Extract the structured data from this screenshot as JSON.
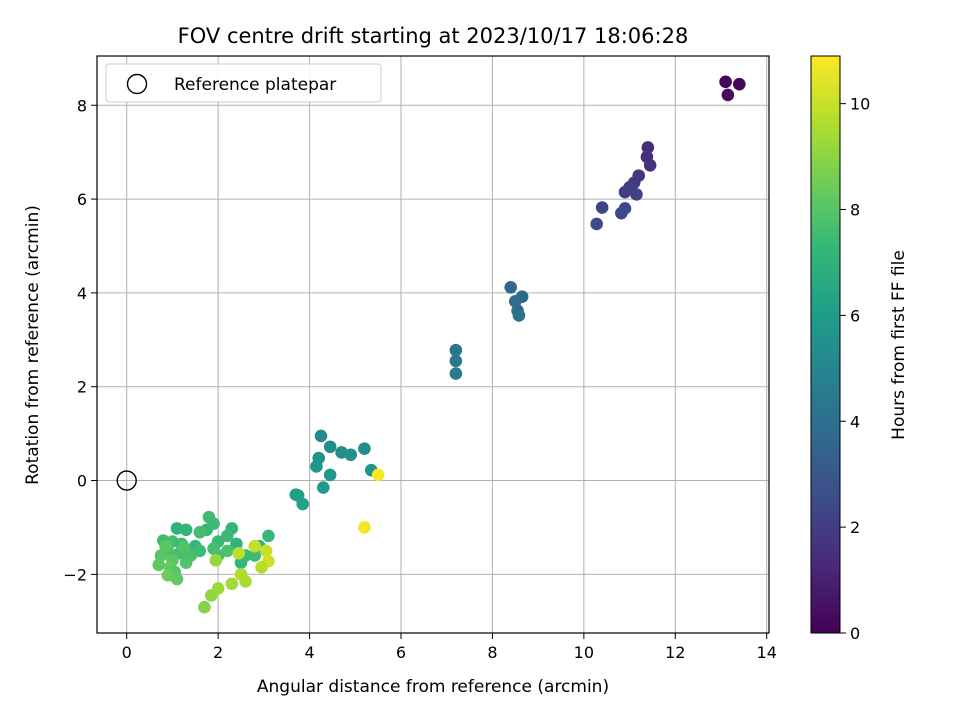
{
  "chart_data": {
    "type": "scatter",
    "title": "FOV centre drift starting at 2023/10/17 18:06:28",
    "xlabel": "Angular distance from reference (arcmin)",
    "ylabel": "Rotation from reference (arcmin)",
    "xlim": [
      -0.65,
      14.05
    ],
    "ylim": [
      -3.25,
      9.05
    ],
    "xticks": [
      0,
      2,
      4,
      6,
      8,
      10,
      12,
      14
    ],
    "yticks": [
      -2,
      0,
      2,
      4,
      6,
      8
    ],
    "grid": true,
    "legend": {
      "placement": "upper-left",
      "entries": [
        {
          "label": "Reference platepar",
          "marker": "open-circle"
        }
      ]
    },
    "reference_point": {
      "x": 0,
      "y": 0
    },
    "colorbar": {
      "label": "Hours from first FF file",
      "min": 0,
      "max": 10.9,
      "ticks": [
        0,
        2,
        4,
        6,
        8,
        10
      ],
      "colormap": "viridis"
    },
    "points": [
      {
        "x": 13.1,
        "y": 8.5,
        "c": 0.1
      },
      {
        "x": 13.4,
        "y": 8.45,
        "c": 0.2
      },
      {
        "x": 13.15,
        "y": 8.22,
        "c": 0.3
      },
      {
        "x": 11.4,
        "y": 7.1,
        "c": 1.4
      },
      {
        "x": 11.38,
        "y": 6.9,
        "c": 1.5
      },
      {
        "x": 11.45,
        "y": 6.72,
        "c": 1.6
      },
      {
        "x": 11.2,
        "y": 6.5,
        "c": 1.7
      },
      {
        "x": 11.1,
        "y": 6.35,
        "c": 1.8
      },
      {
        "x": 11.0,
        "y": 6.25,
        "c": 1.9
      },
      {
        "x": 10.9,
        "y": 6.15,
        "c": 2.0
      },
      {
        "x": 11.15,
        "y": 6.1,
        "c": 2.1
      },
      {
        "x": 10.4,
        "y": 5.82,
        "c": 2.2
      },
      {
        "x": 10.9,
        "y": 5.8,
        "c": 2.3
      },
      {
        "x": 10.82,
        "y": 5.7,
        "c": 2.4
      },
      {
        "x": 10.28,
        "y": 5.47,
        "c": 2.5
      },
      {
        "x": 8.4,
        "y": 4.12,
        "c": 3.6
      },
      {
        "x": 8.65,
        "y": 3.92,
        "c": 3.7
      },
      {
        "x": 8.5,
        "y": 3.82,
        "c": 3.8
      },
      {
        "x": 8.55,
        "y": 3.62,
        "c": 3.9
      },
      {
        "x": 8.58,
        "y": 3.52,
        "c": 4.0
      },
      {
        "x": 7.2,
        "y": 2.78,
        "c": 4.3
      },
      {
        "x": 7.2,
        "y": 2.55,
        "c": 4.4
      },
      {
        "x": 7.2,
        "y": 2.28,
        "c": 4.5
      },
      {
        "x": 4.25,
        "y": 0.95,
        "c": 5.2
      },
      {
        "x": 4.45,
        "y": 0.72,
        "c": 5.3
      },
      {
        "x": 4.7,
        "y": 0.6,
        "c": 5.4
      },
      {
        "x": 4.9,
        "y": 0.55,
        "c": 5.5
      },
      {
        "x": 5.2,
        "y": 0.68,
        "c": 5.3
      },
      {
        "x": 4.2,
        "y": 0.48,
        "c": 5.6
      },
      {
        "x": 4.15,
        "y": 0.3,
        "c": 5.7
      },
      {
        "x": 4.45,
        "y": 0.12,
        "c": 5.8
      },
      {
        "x": 5.35,
        "y": 0.22,
        "c": 5.6
      },
      {
        "x": 4.3,
        "y": -0.15,
        "c": 5.9
      },
      {
        "x": 3.7,
        "y": -0.3,
        "c": 6.0
      },
      {
        "x": 3.75,
        "y": -0.32,
        "c": 6.1
      },
      {
        "x": 3.85,
        "y": -0.5,
        "c": 6.2
      },
      {
        "x": 5.5,
        "y": 0.12,
        "c": 10.9
      },
      {
        "x": 5.2,
        "y": -1.0,
        "c": 10.8
      },
      {
        "x": 1.1,
        "y": -1.02,
        "c": 7.0
      },
      {
        "x": 1.3,
        "y": -1.05,
        "c": 7.1
      },
      {
        "x": 1.8,
        "y": -0.78,
        "c": 7.5
      },
      {
        "x": 1.9,
        "y": -0.92,
        "c": 7.4
      },
      {
        "x": 1.75,
        "y": -1.05,
        "c": 7.3
      },
      {
        "x": 1.6,
        "y": -1.1,
        "c": 7.6
      },
      {
        "x": 2.3,
        "y": -1.02,
        "c": 7.2
      },
      {
        "x": 2.2,
        "y": -1.18,
        "c": 7.4
      },
      {
        "x": 3.1,
        "y": -1.18,
        "c": 7.3
      },
      {
        "x": 0.8,
        "y": -1.28,
        "c": 7.5
      },
      {
        "x": 1.0,
        "y": -1.3,
        "c": 7.6
      },
      {
        "x": 1.2,
        "y": -1.35,
        "c": 7.4
      },
      {
        "x": 1.5,
        "y": -1.4,
        "c": 7.2
      },
      {
        "x": 2.0,
        "y": -1.3,
        "c": 7.3
      },
      {
        "x": 2.4,
        "y": -1.35,
        "c": 7.1
      },
      {
        "x": 2.9,
        "y": -1.4,
        "c": 7.0
      },
      {
        "x": 0.9,
        "y": -1.5,
        "c": 7.8
      },
      {
        "x": 1.15,
        "y": -1.55,
        "c": 7.6
      },
      {
        "x": 1.4,
        "y": -1.6,
        "c": 7.7
      },
      {
        "x": 1.6,
        "y": -1.5,
        "c": 7.5
      },
      {
        "x": 1.9,
        "y": -1.45,
        "c": 7.6
      },
      {
        "x": 2.2,
        "y": -1.5,
        "c": 7.8
      },
      {
        "x": 2.6,
        "y": -1.6,
        "c": 7.4
      },
      {
        "x": 2.5,
        "y": -1.75,
        "c": 7.2
      },
      {
        "x": 0.75,
        "y": -1.6,
        "c": 8.0
      },
      {
        "x": 1.0,
        "y": -1.7,
        "c": 8.1
      },
      {
        "x": 1.3,
        "y": -1.75,
        "c": 7.9
      },
      {
        "x": 0.7,
        "y": -1.8,
        "c": 8.2
      },
      {
        "x": 0.95,
        "y": -1.85,
        "c": 8.3
      },
      {
        "x": 1.05,
        "y": -1.95,
        "c": 8.0
      },
      {
        "x": 0.9,
        "y": -2.02,
        "c": 8.4
      },
      {
        "x": 1.1,
        "y": -2.1,
        "c": 8.2
      },
      {
        "x": 2.0,
        "y": -1.6,
        "c": 7.7
      },
      {
        "x": 2.8,
        "y": -1.6,
        "c": 7.5
      },
      {
        "x": 1.25,
        "y": -1.42,
        "c": 7.9
      },
      {
        "x": 0.85,
        "y": -1.4,
        "c": 8.1
      },
      {
        "x": 1.7,
        "y": -2.7,
        "c": 8.9
      },
      {
        "x": 1.85,
        "y": -2.45,
        "c": 9.1
      },
      {
        "x": 2.0,
        "y": -2.3,
        "c": 9.3
      },
      {
        "x": 2.3,
        "y": -2.2,
        "c": 9.4
      },
      {
        "x": 2.6,
        "y": -2.15,
        "c": 9.5
      },
      {
        "x": 2.5,
        "y": -2.0,
        "c": 9.6
      },
      {
        "x": 2.45,
        "y": -1.55,
        "c": 9.8
      },
      {
        "x": 1.95,
        "y": -1.7,
        "c": 9.2
      },
      {
        "x": 2.8,
        "y": -1.4,
        "c": 9.9
      },
      {
        "x": 3.05,
        "y": -1.5,
        "c": 10.0
      },
      {
        "x": 3.1,
        "y": -1.72,
        "c": 10.1
      },
      {
        "x": 2.95,
        "y": -1.85,
        "c": 9.7
      }
    ]
  }
}
